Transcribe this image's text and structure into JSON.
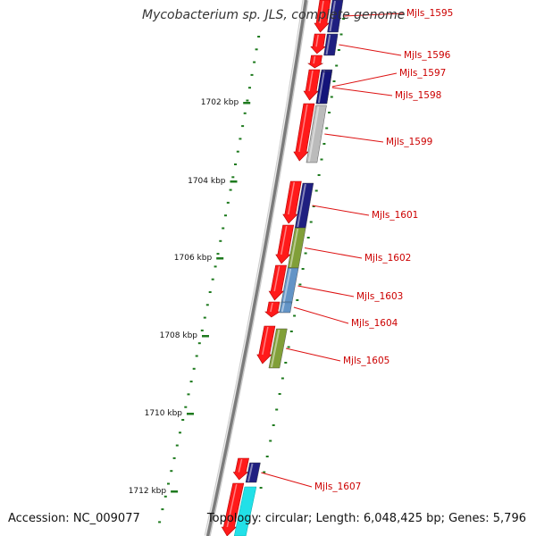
{
  "title": "Mycobacterium sp. JLS, complete genome",
  "accession_text": "Accession: NC_009077",
  "stats_text": "Topology: circular; Length: 6,048,425 bp; Genes: 5,796",
  "colors": {
    "backbone": "#8a8a8a",
    "label_line": "#dd1111",
    "label_text": "#cc0000",
    "tick": "#1e7a1e",
    "cds": "#ff1a1a",
    "navy": "#14147a",
    "steel_blue": "#5b8fc4",
    "olive": "#7b9a2e",
    "gray": "#b8b8b8",
    "cyan": "#22e0e8"
  },
  "scale_labels": [
    "1702 kbp",
    "1704 kbp",
    "1706 kbp",
    "1708 kbp",
    "1710 kbp",
    "1712 kbp"
  ],
  "gene_labels": [
    "Mjls_1595",
    "Mjls_1596",
    "Mjls_1597",
    "Mjls_1598",
    "Mjls_1599",
    "Mjls_1601",
    "Mjls_1602",
    "Mjls_1603",
    "Mjls_1604",
    "Mjls_1605",
    "Mjls_1607"
  ],
  "gene_colors": [
    "navy",
    "navy",
    "navy",
    "navy",
    "gray",
    "navy",
    "olive",
    "steel_blue",
    "steel_blue",
    "olive",
    "navy"
  ]
}
